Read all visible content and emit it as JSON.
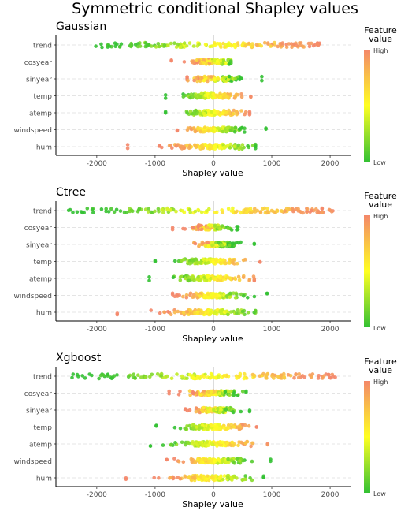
{
  "title": "Symmetric conditional Shapley values",
  "colorbar": {
    "title_line1": "Feature",
    "title_line2": "value",
    "high_label": "High",
    "low_label": "Low",
    "colors": [
      "#33c133",
      "#ffff22",
      "#f4876a"
    ]
  },
  "colors": {
    "axis": "#000000",
    "zero_line": "#c9c9c9",
    "grid": "#dcdcdc",
    "tick_text": "#4d4d4d"
  },
  "chart_data": [
    {
      "type": "scatter",
      "title": "Gaussian",
      "xlabel": "Shapley value",
      "xlim": [
        -2700,
        2350
      ],
      "xticks": [
        -2000,
        -1000,
        0,
        1000,
        2000
      ],
      "xtick_labels": [
        "-2000",
        "-1000",
        "0",
        "1000",
        "2000"
      ],
      "features": [
        "trend",
        "cosyear",
        "sinyear",
        "temp",
        "atemp",
        "windspeed",
        "hum"
      ],
      "ranges": {
        "trend": [
          -2050,
          1820
        ],
        "cosyear": [
          -720,
          300
        ],
        "sinyear": [
          -450,
          830
        ],
        "temp": [
          -820,
          640
        ],
        "atemp": [
          -820,
          620
        ],
        "windspeed": [
          -620,
          900
        ],
        "hum": [
          -1470,
          720
        ]
      },
      "vertical_line_x": 0
    },
    {
      "type": "scatter",
      "title": "Ctree",
      "xlabel": "Shapley value",
      "xlim": [
        -2700,
        2350
      ],
      "xticks": [
        -2000,
        -1000,
        0,
        1000,
        2000
      ],
      "xtick_labels": [
        "-2000",
        "-1000",
        "0",
        "1000",
        "2000"
      ],
      "features": [
        "trend",
        "cosyear",
        "sinyear",
        "temp",
        "atemp",
        "windspeed",
        "hum"
      ],
      "ranges": {
        "trend": [
          -2500,
          2050
        ],
        "cosyear": [
          -700,
          420
        ],
        "sinyear": [
          -330,
          700
        ],
        "temp": [
          -1000,
          800
        ],
        "atemp": [
          -1100,
          700
        ],
        "windspeed": [
          -700,
          920
        ],
        "hum": [
          -1650,
          720
        ]
      },
      "vertical_line_x": 0
    },
    {
      "type": "scatter",
      "title": "Xgboost",
      "xlabel": "Shapley value",
      "xlim": [
        -2700,
        2350
      ],
      "xticks": [
        -2000,
        -1000,
        0,
        1000,
        2000
      ],
      "xtick_labels": [
        "-2000",
        "-1000",
        "0",
        "1000",
        "2000"
      ],
      "features": [
        "trend",
        "cosyear",
        "sinyear",
        "temp",
        "atemp",
        "windspeed",
        "hum"
      ],
      "ranges": {
        "trend": [
          -2500,
          2100
        ],
        "cosyear": [
          -760,
          560
        ],
        "sinyear": [
          -480,
          620
        ],
        "temp": [
          -980,
          740
        ],
        "atemp": [
          -1080,
          930
        ],
        "windspeed": [
          -800,
          980
        ],
        "hum": [
          -1500,
          860
        ]
      },
      "vertical_line_x": 0
    }
  ]
}
